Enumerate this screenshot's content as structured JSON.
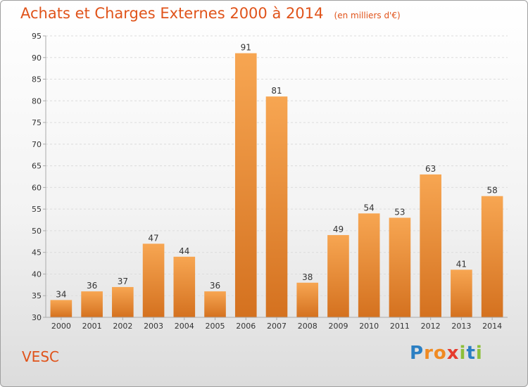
{
  "chart_data": {
    "type": "bar",
    "title": "Achats et Charges Externes 2000 à 2014",
    "unit": "(en milliers d'€)",
    "categories": [
      "2000",
      "2001",
      "2002",
      "2003",
      "2004",
      "2005",
      "2006",
      "2007",
      "2008",
      "2009",
      "2010",
      "2011",
      "2012",
      "2013",
      "2014"
    ],
    "values": [
      34,
      36,
      37,
      47,
      44,
      36,
      91,
      81,
      38,
      49,
      54,
      53,
      63,
      41,
      58
    ],
    "ylim": [
      30,
      95
    ],
    "yticks": [
      30,
      35,
      40,
      45,
      50,
      55,
      60,
      65,
      70,
      75,
      80,
      85,
      90,
      95
    ],
    "grid": true,
    "bar_color": "#f19a3e",
    "bar_color_dark": "#d4711f"
  },
  "commune": "VESC",
  "logo": {
    "letters": [
      "P",
      "r",
      "o",
      "x",
      "i",
      "t",
      "i"
    ],
    "colors": [
      "#2b7fc3",
      "#f08a22",
      "#f08a22",
      "#e63b2e",
      "#8dbf3a",
      "#2b7fc3",
      "#8dbf3a"
    ]
  },
  "colors": {
    "title": "#e0531a",
    "grid": "#dcdcdc",
    "axis": "#aaaaaa"
  }
}
